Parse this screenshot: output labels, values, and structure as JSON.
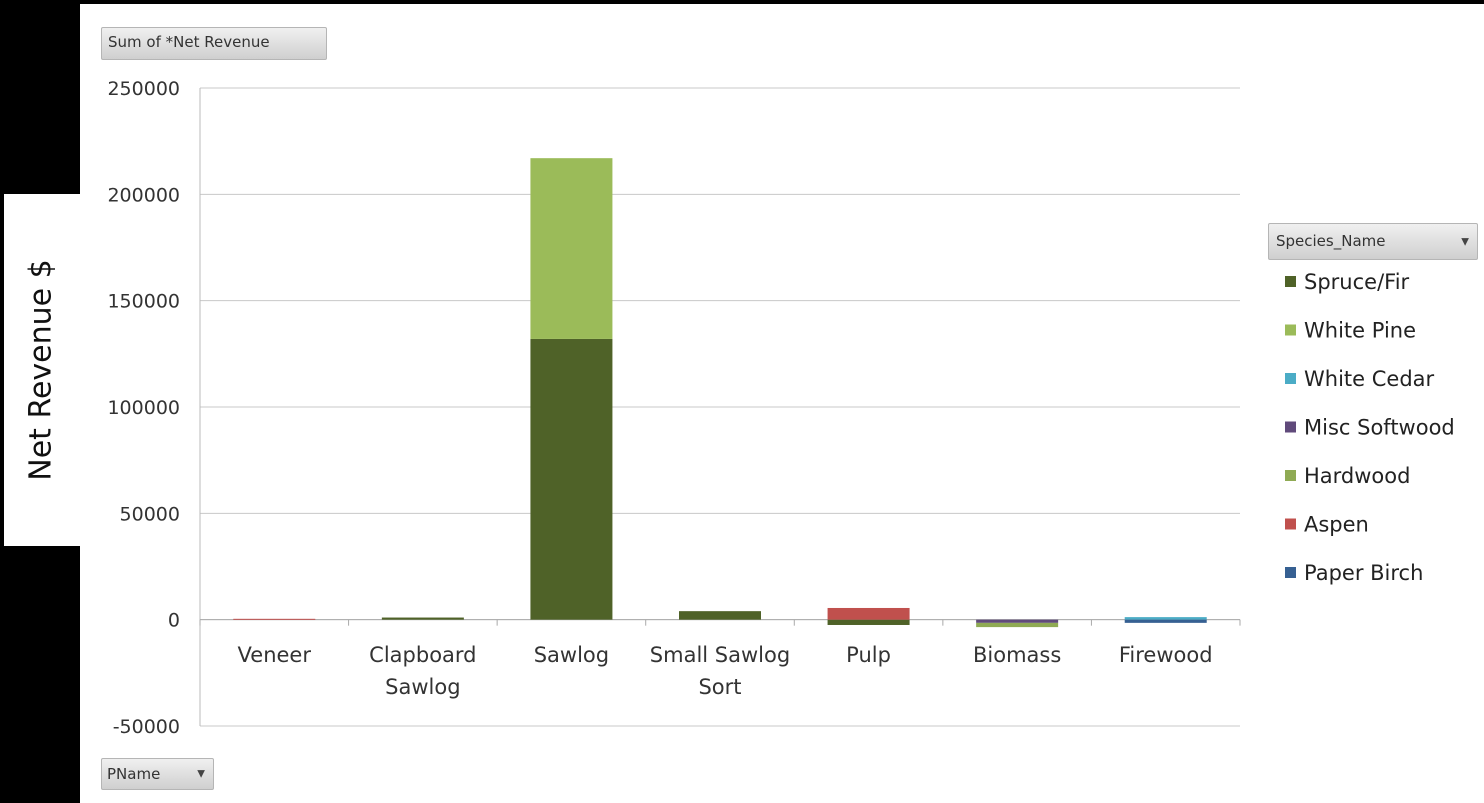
{
  "field_button": {
    "label": "Sum of *Net Revenue"
  },
  "filter_button": {
    "label": "PName",
    "arrow": "▼"
  },
  "legend_button": {
    "label": "Species_Name",
    "arrow": "▼"
  },
  "axis_title": "Net Revenue  $",
  "chart_data": {
    "type": "bar",
    "stacked": true,
    "categories": [
      [
        "Veneer"
      ],
      [
        "Clapboard",
        "Sawlog"
      ],
      [
        "Sawlog"
      ],
      [
        "Small Sawlog",
        "Sort"
      ],
      [
        "Pulp"
      ],
      [
        "Biomass"
      ],
      [
        "Firewood"
      ]
    ],
    "ylim": [
      -50000,
      250000
    ],
    "yticks": [
      -50000,
      0,
      50000,
      100000,
      150000,
      200000,
      250000
    ],
    "grid": true,
    "legend_position": "right",
    "series": [
      {
        "name": "Spruce/Fir",
        "color": "#4f6228",
        "values": [
          0,
          1000,
          132000,
          4000,
          -2500,
          0,
          0
        ]
      },
      {
        "name": "White Pine",
        "color": "#9bbb59",
        "values": [
          0,
          0,
          85000,
          0,
          0,
          0,
          0
        ]
      },
      {
        "name": "White Cedar",
        "color": "#4bacc6",
        "values": [
          0,
          0,
          0,
          0,
          0,
          0,
          1200
        ]
      },
      {
        "name": "Misc Softwood",
        "color": "#604a7b",
        "values": [
          0,
          0,
          0,
          0,
          0,
          -1500,
          0
        ]
      },
      {
        "name": "Hardwood",
        "color": "#8faa54",
        "values": [
          0,
          0,
          0,
          0,
          0,
          -2000,
          0
        ]
      },
      {
        "name": "Aspen",
        "color": "#c0504d",
        "values": [
          400,
          0,
          0,
          0,
          5500,
          0,
          0
        ]
      },
      {
        "name": "Paper Birch",
        "color": "#366092",
        "values": [
          0,
          0,
          0,
          0,
          0,
          0,
          -1500
        ]
      }
    ]
  }
}
